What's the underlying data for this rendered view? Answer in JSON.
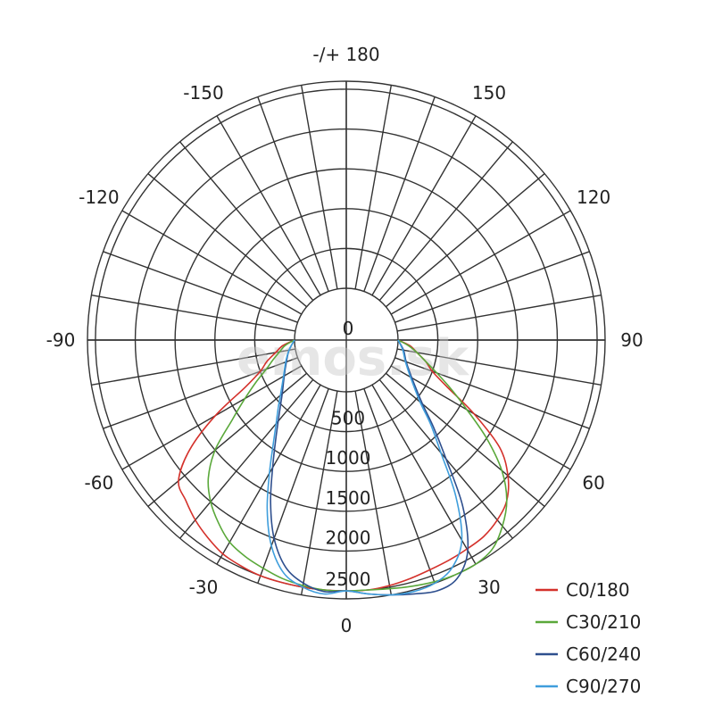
{
  "chart_data": {
    "type": "polar",
    "angle_labels": [
      {
        "angle": 180,
        "text": "-/+ 180"
      },
      {
        "angle": -150,
        "text": "-150"
      },
      {
        "angle": 150,
        "text": "150"
      },
      {
        "angle": -120,
        "text": "-120"
      },
      {
        "angle": 120,
        "text": "120"
      },
      {
        "angle": -90,
        "text": "-90"
      },
      {
        "angle": 90,
        "text": "90"
      },
      {
        "angle": -60,
        "text": "-60"
      },
      {
        "angle": 60,
        "text": "60"
      },
      {
        "angle": -30,
        "text": "-30"
      },
      {
        "angle": 30,
        "text": "30"
      },
      {
        "angle": 0,
        "text": "0"
      }
    ],
    "radial_labels": [
      "0",
      "500",
      "1000",
      "1500",
      "2000",
      "2500"
    ],
    "radial_ticks": [
      0,
      500,
      1000,
      1500,
      2000,
      2500
    ],
    "r_max": 2600,
    "series": [
      {
        "name": "C0/180",
        "color": "#d4312b",
        "angles": [
          -90,
          -85,
          -80,
          -75,
          -70,
          -65,
          -60,
          -55,
          -50,
          -45,
          -40,
          -35,
          -30,
          -25,
          -20,
          -15,
          -10,
          -5,
          0,
          5,
          10,
          15,
          20,
          25,
          30,
          35,
          40,
          45,
          50,
          55,
          60,
          65,
          70,
          75,
          80,
          85,
          90
        ],
        "values": [
          0,
          150,
          250,
          380,
          500,
          750,
          1250,
          1750,
          2100,
          2200,
          2300,
          2380,
          2450,
          2480,
          2500,
          2500,
          2500,
          2500,
          2500,
          2500,
          2480,
          2450,
          2420,
          2400,
          2380,
          2360,
          2300,
          2200,
          2000,
          1700,
          1200,
          750,
          500,
          380,
          250,
          150,
          0
        ]
      },
      {
        "name": "C30/210",
        "color": "#5aa83a",
        "angles": [
          -90,
          -85,
          -80,
          -75,
          -70,
          -65,
          -60,
          -55,
          -50,
          -45,
          -40,
          -35,
          -30,
          -25,
          -20,
          -15,
          -10,
          -5,
          0,
          5,
          10,
          15,
          20,
          25,
          30,
          35,
          40,
          45,
          50,
          55,
          60,
          65,
          70,
          75,
          80,
          85,
          90
        ],
        "values": [
          0,
          120,
          200,
          300,
          420,
          600,
          820,
          1100,
          1500,
          1800,
          2000,
          2150,
          2280,
          2350,
          2400,
          2450,
          2480,
          2500,
          2500,
          2500,
          2520,
          2550,
          2580,
          2600,
          2600,
          2550,
          2400,
          2200,
          1900,
          1500,
          1100,
          800,
          560,
          380,
          250,
          130,
          0
        ]
      },
      {
        "name": "C60/240",
        "color": "#2e4f8e",
        "angles": [
          -90,
          -80,
          -70,
          -60,
          -50,
          -45,
          -40,
          -35,
          -30,
          -25,
          -20,
          -15,
          -10,
          -5,
          0,
          5,
          10,
          15,
          20,
          25,
          30,
          35,
          40,
          45,
          50,
          60,
          70,
          80,
          90
        ],
        "values": [
          0,
          80,
          150,
          250,
          400,
          520,
          680,
          900,
          1200,
          1600,
          2000,
          2300,
          2450,
          2520,
          2500,
          2550,
          2600,
          2650,
          2700,
          2650,
          2400,
          1900,
          1300,
          900,
          600,
          300,
          150,
          80,
          0
        ]
      },
      {
        "name": "C90/270",
        "color": "#3f9edc",
        "angles": [
          -90,
          -80,
          -70,
          -60,
          -50,
          -45,
          -40,
          -35,
          -30,
          -25,
          -20,
          -15,
          -10,
          -5,
          0,
          5,
          10,
          15,
          20,
          25,
          30,
          35,
          40,
          45,
          50,
          60,
          70,
          80,
          90
        ],
        "values": [
          0,
          80,
          160,
          260,
          430,
          560,
          720,
          950,
          1280,
          1700,
          2100,
          2380,
          2500,
          2550,
          2500,
          2550,
          2600,
          2620,
          2600,
          2500,
          2250,
          1750,
          1200,
          850,
          560,
          280,
          140,
          70,
          0
        ]
      }
    ],
    "legend_position": "bottom-right",
    "grid": true
  },
  "watermark": "emos.sk"
}
